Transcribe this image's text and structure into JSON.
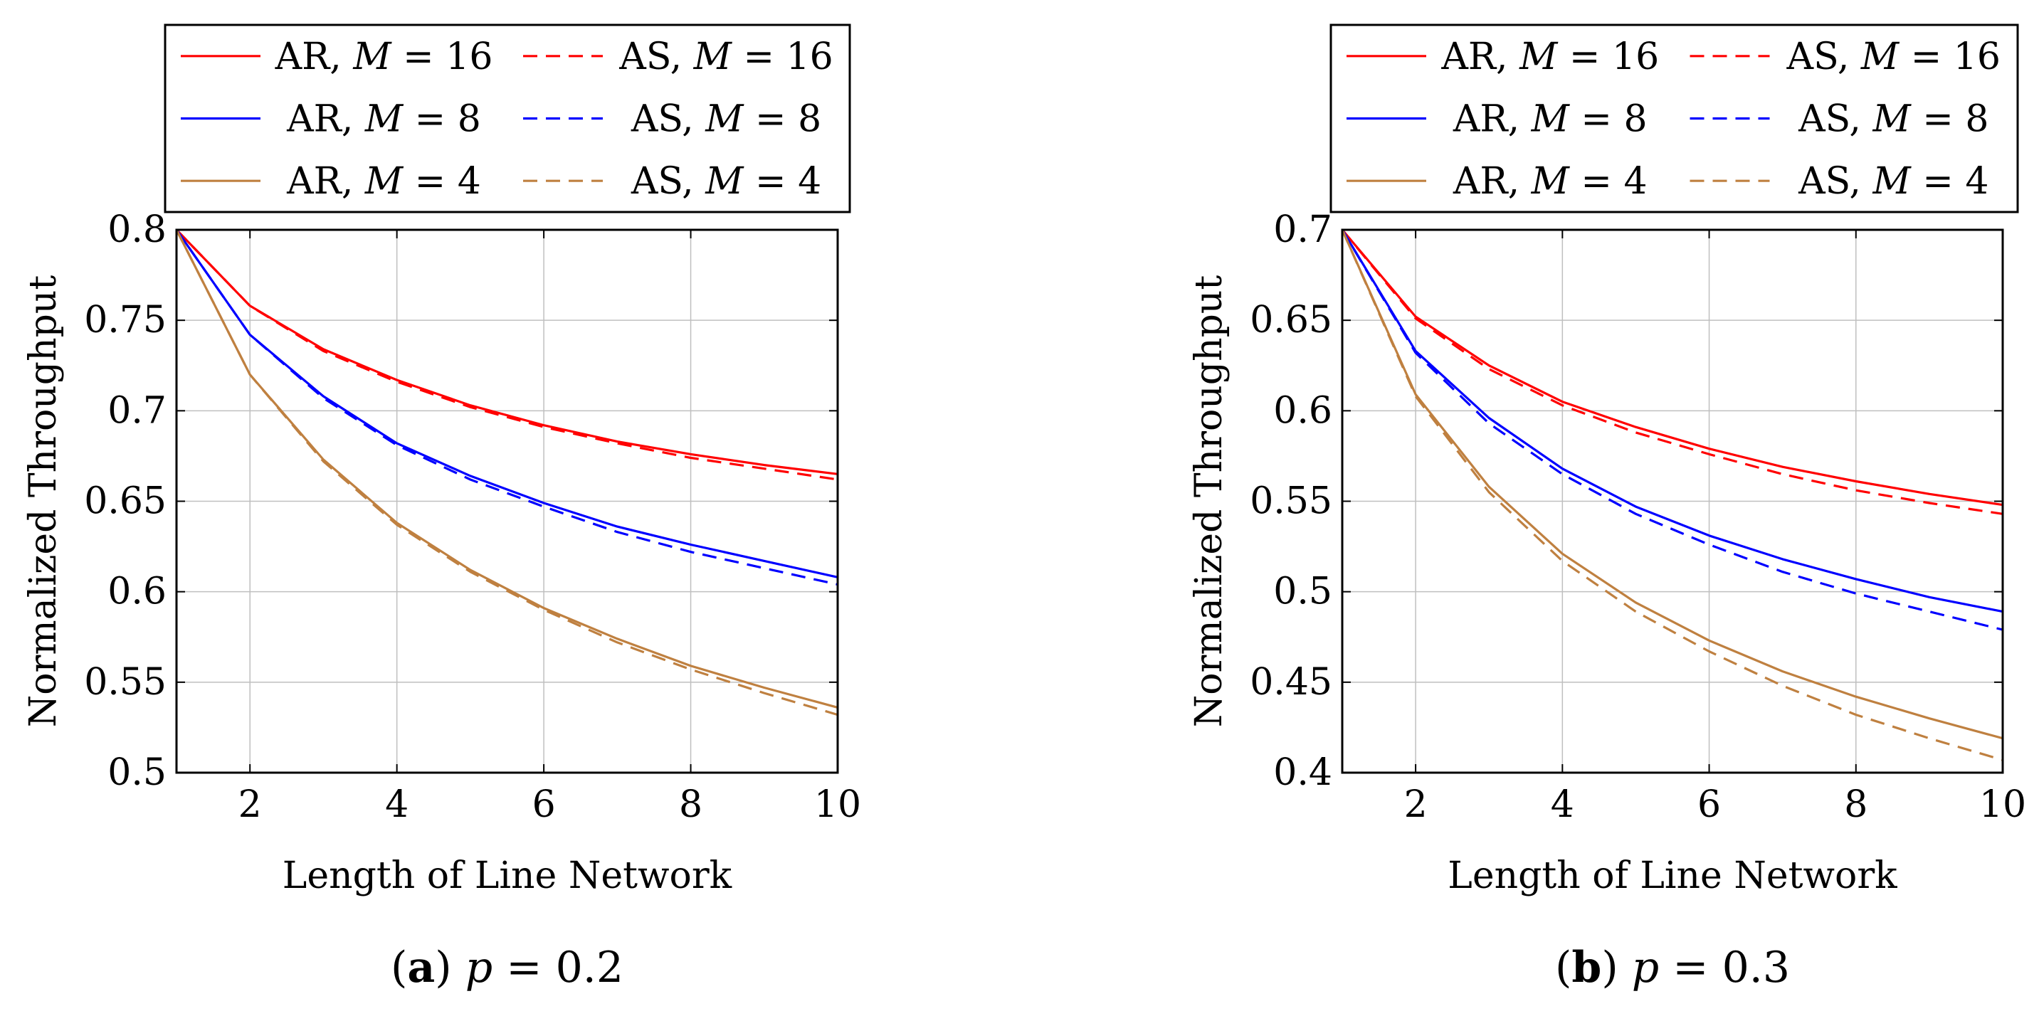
{
  "chart_data": [
    {
      "type": "line",
      "subfigure_label": "a",
      "caption_variable": "p",
      "caption_value": "0.2",
      "xlabel": "Length of Line Network",
      "ylabel": "Normalized Throughput",
      "xlim": [
        1,
        10
      ],
      "ylim": [
        0.5,
        0.8
      ],
      "x_ticks": [
        2,
        4,
        6,
        8,
        10
      ],
      "y_ticks": [
        "0.5",
        "0.55",
        "0.6",
        "0.65",
        "0.7",
        "0.75",
        "0.8"
      ],
      "grid": true,
      "legend_position": "above",
      "x": [
        1,
        2,
        3,
        4,
        5,
        6,
        7,
        8,
        9,
        10
      ],
      "series": [
        {
          "name": "AR, M = 16",
          "scheme": "AR",
          "M": 16,
          "color": "#ff0000",
          "dash": "solid",
          "values": [
            0.8,
            0.758,
            0.734,
            0.717,
            0.703,
            0.692,
            0.683,
            0.676,
            0.67,
            0.665
          ]
        },
        {
          "name": "AS, M = 16",
          "scheme": "AS",
          "M": 16,
          "color": "#ff0000",
          "dash": "dashed",
          "values": [
            0.8,
            0.758,
            0.733,
            0.716,
            0.702,
            0.691,
            0.682,
            0.674,
            0.668,
            0.662
          ]
        },
        {
          "name": "AR, M = 8",
          "scheme": "AR",
          "M": 8,
          "color": "#0000ff",
          "dash": "solid",
          "values": [
            0.8,
            0.742,
            0.708,
            0.682,
            0.664,
            0.649,
            0.636,
            0.626,
            0.617,
            0.608
          ]
        },
        {
          "name": "AS, M = 8",
          "scheme": "AS",
          "M": 8,
          "color": "#0000ff",
          "dash": "dashed",
          "values": [
            0.8,
            0.742,
            0.707,
            0.681,
            0.662,
            0.647,
            0.633,
            0.622,
            0.613,
            0.604
          ]
        },
        {
          "name": "AR, M = 4",
          "scheme": "AR",
          "M": 4,
          "color": "#bf8040",
          "dash": "solid",
          "values": [
            0.8,
            0.72,
            0.673,
            0.638,
            0.612,
            0.591,
            0.574,
            0.559,
            0.547,
            0.536
          ]
        },
        {
          "name": "AS, M = 4",
          "scheme": "AS",
          "M": 4,
          "color": "#bf8040",
          "dash": "dashed",
          "values": [
            0.8,
            0.72,
            0.672,
            0.637,
            0.611,
            0.59,
            0.572,
            0.557,
            0.544,
            0.532
          ]
        }
      ]
    },
    {
      "type": "line",
      "subfigure_label": "b",
      "caption_variable": "p",
      "caption_value": "0.3",
      "xlabel": "Length of Line Network",
      "ylabel": "Normalized Throughput",
      "xlim": [
        1,
        10
      ],
      "ylim": [
        0.4,
        0.7
      ],
      "x_ticks": [
        2,
        4,
        6,
        8,
        10
      ],
      "y_ticks": [
        "0.4",
        "0.45",
        "0.5",
        "0.55",
        "0.6",
        "0.65",
        "0.7"
      ],
      "grid": true,
      "legend_position": "above",
      "x": [
        1,
        2,
        3,
        4,
        5,
        6,
        7,
        8,
        9,
        10
      ],
      "series": [
        {
          "name": "AR, M = 16",
          "scheme": "AR",
          "M": 16,
          "color": "#ff0000",
          "dash": "solid",
          "values": [
            0.7,
            0.652,
            0.625,
            0.605,
            0.591,
            0.579,
            0.569,
            0.561,
            0.554,
            0.548
          ]
        },
        {
          "name": "AS, M = 16",
          "scheme": "AS",
          "M": 16,
          "color": "#ff0000",
          "dash": "dashed",
          "values": [
            0.7,
            0.651,
            0.623,
            0.603,
            0.588,
            0.576,
            0.565,
            0.556,
            0.549,
            0.543
          ]
        },
        {
          "name": "AR, M = 8",
          "scheme": "AR",
          "M": 8,
          "color": "#0000ff",
          "dash": "solid",
          "values": [
            0.7,
            0.633,
            0.596,
            0.568,
            0.547,
            0.531,
            0.518,
            0.507,
            0.497,
            0.489
          ]
        },
        {
          "name": "AS, M = 8",
          "scheme": "AS",
          "M": 8,
          "color": "#0000ff",
          "dash": "dashed",
          "values": [
            0.7,
            0.632,
            0.593,
            0.565,
            0.543,
            0.526,
            0.511,
            0.499,
            0.489,
            0.479
          ]
        },
        {
          "name": "AR, M = 4",
          "scheme": "AR",
          "M": 4,
          "color": "#bf8040",
          "dash": "solid",
          "values": [
            0.7,
            0.609,
            0.558,
            0.521,
            0.494,
            0.473,
            0.456,
            0.442,
            0.43,
            0.419
          ]
        },
        {
          "name": "AS, M = 4",
          "scheme": "AS",
          "M": 4,
          "color": "#bf8040",
          "dash": "dashed",
          "values": [
            0.7,
            0.608,
            0.555,
            0.517,
            0.489,
            0.467,
            0.448,
            0.432,
            0.419,
            0.407
          ]
        }
      ]
    }
  ]
}
